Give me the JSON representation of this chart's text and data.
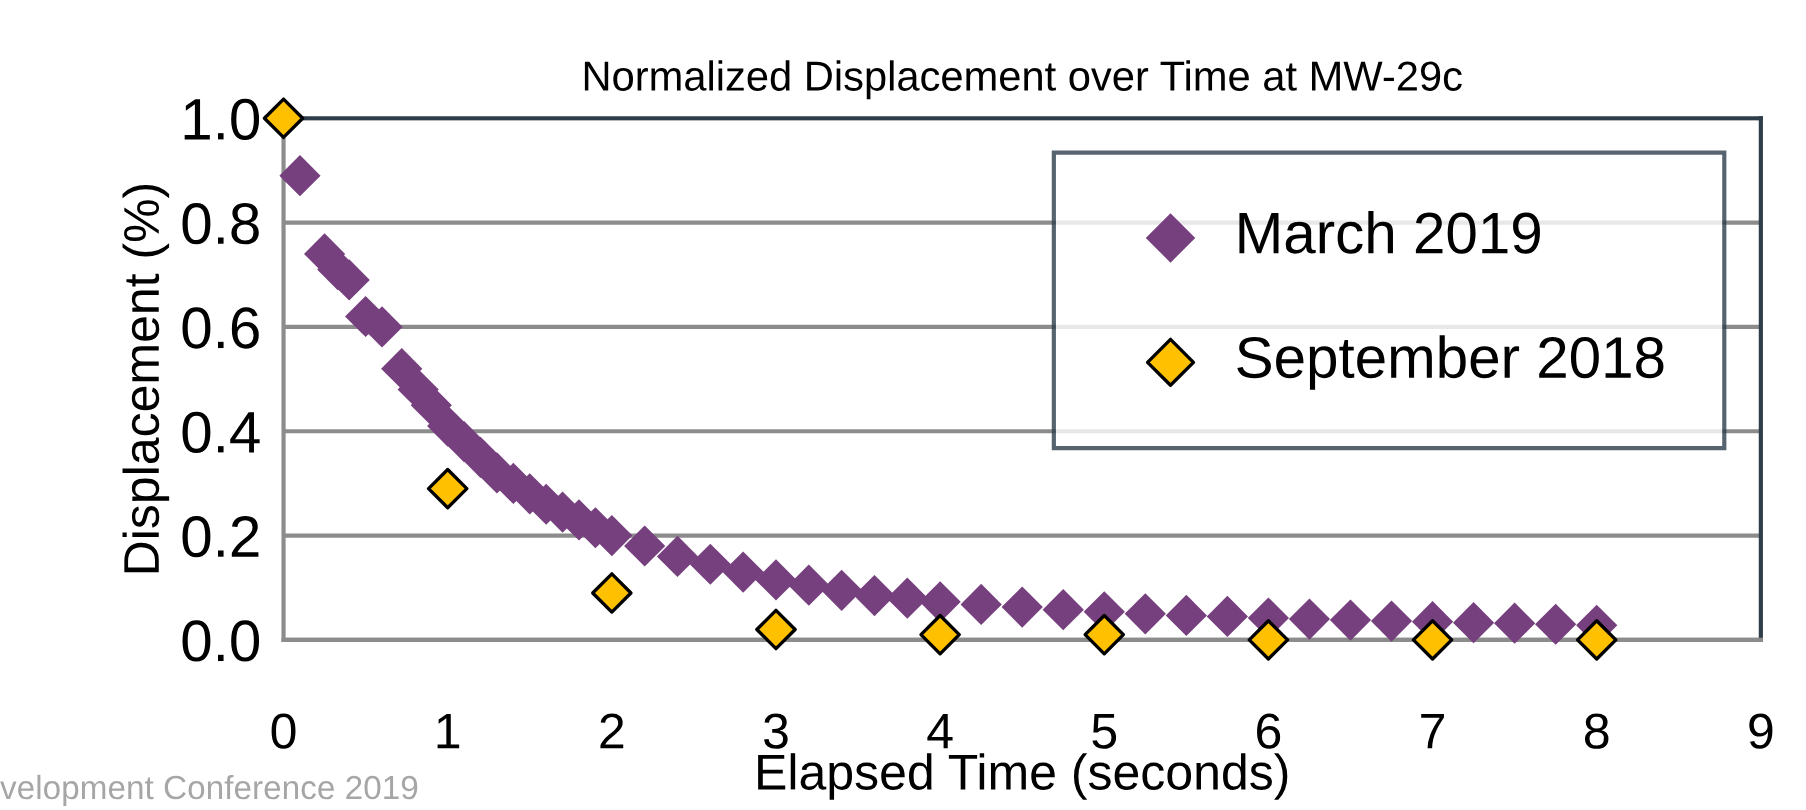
{
  "chart_data": {
    "type": "scatter",
    "title": "Normalized Displacement over Time at MW-29c",
    "xlabel": "Elapsed Time (seconds)",
    "ylabel": "Displacement (%)",
    "series": [
      {
        "name": "March 2019",
        "color": "#763f7e",
        "x": [
          0.1,
          0.25,
          0.33,
          0.4,
          0.5,
          0.6,
          0.72,
          0.82,
          0.9,
          1.0,
          1.1,
          1.2,
          1.3,
          1.4,
          1.5,
          1.6,
          1.7,
          1.8,
          1.9,
          2.0,
          2.2,
          2.4,
          2.6,
          2.8,
          3.0,
          3.2,
          3.4,
          3.6,
          3.8,
          4.0,
          4.25,
          4.5,
          4.75,
          5.0,
          5.25,
          5.5,
          5.75,
          6.0,
          6.25,
          6.5,
          6.75,
          7.0,
          7.25,
          7.5,
          7.75,
          8.0
        ],
        "values": [
          0.89,
          0.74,
          0.71,
          0.69,
          0.62,
          0.6,
          0.52,
          0.48,
          0.45,
          0.41,
          0.38,
          0.35,
          0.32,
          0.3,
          0.28,
          0.26,
          0.245,
          0.23,
          0.215,
          0.2,
          0.18,
          0.16,
          0.145,
          0.13,
          0.115,
          0.105,
          0.095,
          0.085,
          0.08,
          0.073,
          0.068,
          0.063,
          0.058,
          0.054,
          0.05,
          0.047,
          0.045,
          0.042,
          0.04,
          0.038,
          0.036,
          0.035,
          0.033,
          0.032,
          0.03,
          0.028
        ]
      },
      {
        "name": "September 2018",
        "color": "#ffc000",
        "x": [
          0,
          1,
          2,
          3,
          4,
          5,
          6,
          7,
          8
        ],
        "values": [
          1.0,
          0.29,
          0.09,
          0.02,
          0.01,
          0.01,
          0.0,
          0.0,
          0.0
        ]
      }
    ],
    "xlim": [
      0,
      9
    ],
    "xticks": [
      0,
      1,
      2,
      3,
      4,
      5,
      6,
      7,
      8,
      9
    ],
    "ylim": [
      0,
      1
    ],
    "yticks": [
      {
        "value": 0,
        "label": "0.0"
      },
      {
        "value": 0.2,
        "label": "0.2"
      },
      {
        "value": 0.4,
        "label": "0.4"
      },
      {
        "value": 0.6,
        "label": "0.6"
      },
      {
        "value": 0.8,
        "label": "0.8"
      },
      {
        "value": 1,
        "label": "1.0"
      }
    ],
    "grid": "y",
    "legend": "top right",
    "marker": "diamond",
    "annotations": [
      "velopment Conference 2019"
    ]
  }
}
